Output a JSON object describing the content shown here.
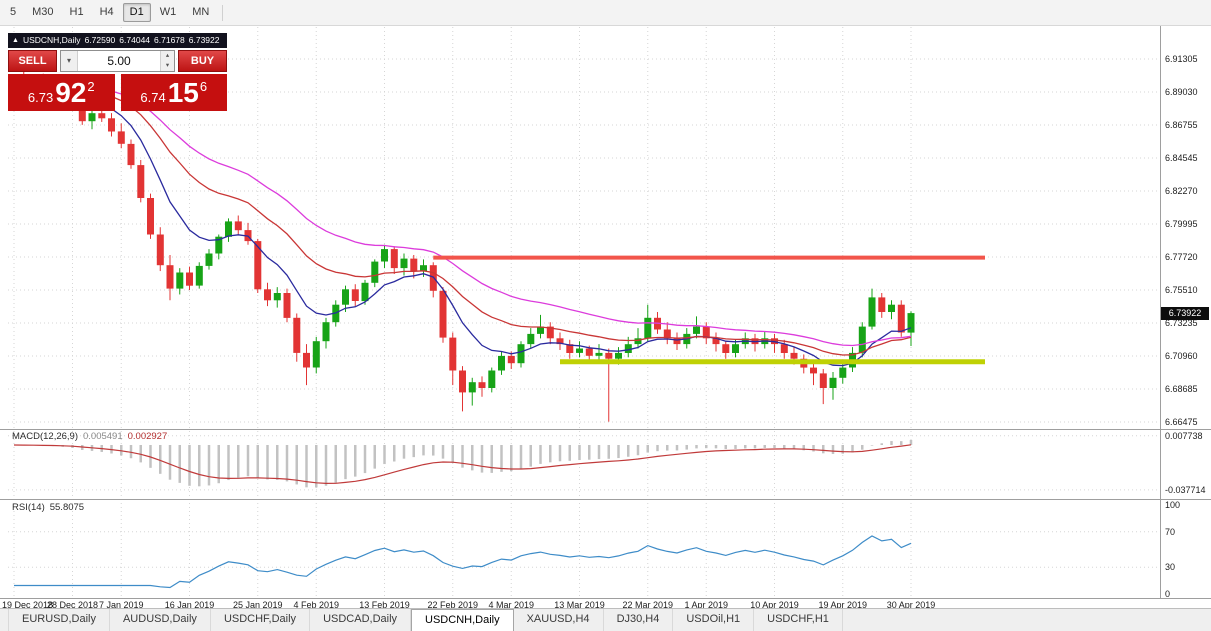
{
  "toolbar": {
    "timeframes": [
      {
        "label": "5",
        "active": false
      },
      {
        "label": "M30",
        "active": false
      },
      {
        "label": "H1",
        "active": false
      },
      {
        "label": "H4",
        "active": false
      },
      {
        "label": "D1",
        "active": true
      },
      {
        "label": "W1",
        "active": false
      },
      {
        "label": "MN",
        "active": false
      }
    ]
  },
  "trade_panel": {
    "header": {
      "collapse_icon": "▲",
      "title": "USDCNH,Daily",
      "open": "6.72590",
      "high": "6.74044",
      "low": "6.71678",
      "close": "6.73922"
    },
    "sell_label": "SELL",
    "buy_label": "BUY",
    "volume": "5.00",
    "sell_quote": {
      "base": "6.73",
      "pips": "92",
      "sup": "2"
    },
    "buy_quote": {
      "base": "6.74",
      "pips": "15",
      "sup": "6"
    }
  },
  "chart": {
    "symbol": "USDCNH",
    "period": "Daily",
    "current_price": "6.73922",
    "price_scale": [
      "6.91305",
      "6.89030",
      "6.86755",
      "6.84545",
      "6.82270",
      "6.79995",
      "6.77720",
      "6.75510",
      "6.73235",
      "6.70960",
      "6.68685",
      "6.66475"
    ],
    "date_ticks": [
      {
        "label": "19 Dec 2018",
        "index": 0
      },
      {
        "label": "28 Dec 2018",
        "index": 6
      },
      {
        "label": "7 Jan 2019",
        "index": 11
      },
      {
        "label": "16 Jan 2019",
        "index": 18
      },
      {
        "label": "25 Jan 2019",
        "index": 25
      },
      {
        "label": "4 Feb 2019",
        "index": 31
      },
      {
        "label": "13 Feb 2019",
        "index": 38
      },
      {
        "label": "22 Feb 2019",
        "index": 45
      },
      {
        "label": "4 Mar 2019",
        "index": 51
      },
      {
        "label": "13 Mar 2019",
        "index": 58
      },
      {
        "label": "22 Mar 2019",
        "index": 65
      },
      {
        "label": "1 Apr 2019",
        "index": 71
      },
      {
        "label": "10 Apr 2019",
        "index": 78
      },
      {
        "label": "19 Apr 2019",
        "index": 85
      },
      {
        "label": "30 Apr 2019",
        "index": 92
      }
    ],
    "objects": [
      {
        "name": "resistance-line",
        "price": 6.7772,
        "start_index": 43,
        "color": "#f2554b",
        "width": 4
      },
      {
        "name": "support-line",
        "price": 6.706,
        "start_index": 56,
        "color": "#bfd104",
        "width": 5
      }
    ],
    "candles": [
      [
        "19 Dec 2018",
        6.895,
        6.902,
        6.888,
        6.899
      ],
      [
        "20 Dec 2018",
        6.899,
        6.9055,
        6.892,
        6.894
      ],
      [
        "21 Dec 2018",
        6.894,
        6.9,
        6.887,
        6.8975
      ],
      [
        "24 Dec 2018",
        6.8975,
        6.903,
        6.89,
        6.892
      ],
      [
        "26 Dec 2018",
        6.892,
        6.898,
        6.885,
        6.8955
      ],
      [
        "27 Dec 2018",
        6.8955,
        6.9005,
        6.887,
        6.889
      ],
      [
        "28 Dec 2018",
        6.889,
        6.894,
        6.879,
        6.8815
      ],
      [
        "31 Dec 2018",
        6.8815,
        6.886,
        6.868,
        6.8705
      ],
      [
        "2 Jan 2019",
        6.8705,
        6.879,
        6.865,
        6.876
      ],
      [
        "3 Jan 2019",
        6.876,
        6.882,
        6.87,
        6.8725
      ],
      [
        "4 Jan 2019",
        6.8725,
        6.876,
        6.86,
        6.8635
      ],
      [
        "7 Jan 2019",
        6.8635,
        6.869,
        6.852,
        6.855
      ],
      [
        "8 Jan 2019",
        6.855,
        6.858,
        6.838,
        6.8405
      ],
      [
        "9 Jan 2019",
        6.8405,
        6.844,
        6.815,
        6.818
      ],
      [
        "10 Jan 2019",
        6.818,
        6.821,
        6.79,
        6.793
      ],
      [
        "11 Jan 2019",
        6.793,
        6.798,
        6.768,
        6.772
      ],
      [
        "14 Jan 2019",
        6.772,
        6.779,
        6.748,
        6.756
      ],
      [
        "15 Jan 2019",
        6.756,
        6.77,
        6.752,
        6.767
      ],
      [
        "16 Jan 2019",
        6.767,
        6.771,
        6.755,
        6.758
      ],
      [
        "17 Jan 2019",
        6.758,
        6.774,
        6.756,
        6.7715
      ],
      [
        "18 Jan 2019",
        6.7715,
        6.783,
        6.769,
        6.78
      ],
      [
        "21 Jan 2019",
        6.78,
        6.793,
        6.776,
        6.7915
      ],
      [
        "22 Jan 2019",
        6.7915,
        6.804,
        6.788,
        6.802
      ],
      [
        "23 Jan 2019",
        6.802,
        6.806,
        6.793,
        6.796
      ],
      [
        "24 Jan 2019",
        6.796,
        6.801,
        6.786,
        6.7885
      ],
      [
        "25 Jan 2019",
        6.7885,
        6.79,
        6.753,
        6.7555
      ],
      [
        "28 Jan 2019",
        6.7555,
        6.76,
        6.744,
        6.748
      ],
      [
        "29 Jan 2019",
        6.748,
        6.757,
        6.743,
        6.753
      ],
      [
        "30 Jan 2019",
        6.753,
        6.756,
        6.733,
        6.736
      ],
      [
        "31 Jan 2019",
        6.736,
        6.739,
        6.706,
        6.712
      ],
      [
        "1 Feb 2019",
        6.712,
        6.718,
        6.69,
        6.702
      ],
      [
        "4 Feb 2019",
        6.702,
        6.723,
        6.698,
        6.72
      ],
      [
        "5 Feb 2019",
        6.72,
        6.736,
        6.715,
        6.733
      ],
      [
        "6 Feb 2019",
        6.733,
        6.748,
        6.73,
        6.745
      ],
      [
        "7 Feb 2019",
        6.745,
        6.758,
        6.74,
        6.7555
      ],
      [
        "8 Feb 2019",
        6.7555,
        6.759,
        6.744,
        6.7475
      ],
      [
        "11 Feb 2019",
        6.7475,
        6.762,
        6.745,
        6.76
      ],
      [
        "12 Feb 2019",
        6.76,
        6.776,
        6.757,
        6.7745
      ],
      [
        "13 Feb 2019",
        6.7745,
        6.786,
        6.77,
        6.783
      ],
      [
        "14 Feb 2019",
        6.783,
        6.785,
        6.766,
        6.77
      ],
      [
        "15 Feb 2019",
        6.77,
        6.78,
        6.765,
        6.7765
      ],
      [
        "18 Feb 2019",
        6.7765,
        6.779,
        6.763,
        6.768
      ],
      [
        "19 Feb 2019",
        6.768,
        6.776,
        6.764,
        6.772
      ],
      [
        "20 Feb 2019",
        6.772,
        6.774,
        6.75,
        6.7545
      ],
      [
        "21 Feb 2019",
        6.7545,
        6.757,
        6.719,
        6.7225
      ],
      [
        "22 Feb 2019",
        6.7225,
        6.726,
        6.69,
        6.7
      ],
      [
        "25 Feb 2019",
        6.7,
        6.703,
        6.672,
        6.685
      ],
      [
        "26 Feb 2019",
        6.685,
        6.695,
        6.676,
        6.692
      ],
      [
        "27 Feb 2019",
        6.692,
        6.696,
        6.682,
        6.688
      ],
      [
        "28 Feb 2019",
        6.688,
        6.702,
        6.685,
        6.7
      ],
      [
        "1 Mar 2019",
        6.7,
        6.713,
        6.697,
        6.71
      ],
      [
        "4 Mar 2019",
        6.71,
        6.713,
        6.701,
        6.705
      ],
      [
        "5 Mar 2019",
        6.705,
        6.72,
        6.702,
        6.718
      ],
      [
        "6 Mar 2019",
        6.718,
        6.729,
        6.715,
        6.725
      ],
      [
        "7 Mar 2019",
        6.725,
        6.738,
        6.722,
        6.73
      ],
      [
        "8 Mar 2019",
        6.73,
        6.733,
        6.718,
        6.722
      ],
      [
        "11 Mar 2019",
        6.722,
        6.726,
        6.714,
        6.718
      ],
      [
        "12 Mar 2019",
        6.718,
        6.721,
        6.708,
        6.712
      ],
      [
        "13 Mar 2019",
        6.712,
        6.72,
        6.709,
        6.715
      ],
      [
        "14 Mar 2019",
        6.715,
        6.717,
        6.705,
        6.71
      ],
      [
        "15 Mar 2019",
        6.71,
        6.718,
        6.707,
        6.712
      ],
      [
        "18 Mar 2019",
        6.712,
        6.715,
        6.665,
        6.708
      ],
      [
        "19 Mar 2019",
        6.708,
        6.716,
        6.704,
        6.712
      ],
      [
        "20 Mar 2019",
        6.712,
        6.723,
        6.709,
        6.718
      ],
      [
        "21 Mar 2019",
        6.718,
        6.729,
        6.715,
        6.722
      ],
      [
        "22 Mar 2019",
        6.722,
        6.745,
        6.72,
        6.736
      ],
      [
        "25 Mar 2019",
        6.736,
        6.74,
        6.725,
        6.728
      ],
      [
        "26 Mar 2019",
        6.728,
        6.733,
        6.718,
        6.722
      ],
      [
        "27 Mar 2019",
        6.722,
        6.726,
        6.714,
        6.718
      ],
      [
        "28 Mar 2019",
        6.718,
        6.729,
        6.715,
        6.725
      ],
      [
        "29 Mar 2019",
        6.725,
        6.737,
        6.722,
        6.73
      ],
      [
        "1 Apr 2019",
        6.73,
        6.733,
        6.718,
        6.722
      ],
      [
        "2 Apr 2019",
        6.722,
        6.726,
        6.713,
        6.718
      ],
      [
        "3 Apr 2019",
        6.718,
        6.72,
        6.708,
        6.712
      ],
      [
        "4 Apr 2019",
        6.712,
        6.721,
        6.709,
        6.718
      ],
      [
        "5 Apr 2019",
        6.718,
        6.726,
        6.715,
        6.722
      ],
      [
        "8 Apr 2019",
        6.722,
        6.725,
        6.713,
        6.718
      ],
      [
        "9 Apr 2019",
        6.718,
        6.727,
        6.715,
        6.722
      ],
      [
        "10 Apr 2019",
        6.722,
        6.725,
        6.712,
        6.718
      ],
      [
        "11 Apr 2019",
        6.718,
        6.721,
        6.708,
        6.712
      ],
      [
        "12 Apr 2019",
        6.712,
        6.716,
        6.704,
        6.708
      ],
      [
        "15 Apr 2019",
        6.708,
        6.711,
        6.698,
        6.702
      ],
      [
        "16 Apr 2019",
        6.702,
        6.706,
        6.69,
        6.698
      ],
      [
        "17 Apr 2019",
        6.698,
        6.701,
        6.677,
        6.688
      ],
      [
        "18 Apr 2019",
        6.688,
        6.699,
        6.68,
        6.695
      ],
      [
        "19 Apr 2019",
        6.695,
        6.706,
        6.691,
        6.702
      ],
      [
        "22 Apr 2019",
        6.702,
        6.716,
        6.699,
        6.712
      ],
      [
        "23 Apr 2019",
        6.712,
        6.733,
        6.709,
        6.73
      ],
      [
        "24 Apr 2019",
        6.73,
        6.756,
        6.728,
        6.75
      ],
      [
        "25 Apr 2019",
        6.75,
        6.753,
        6.736,
        6.74
      ],
      [
        "26 Apr 2019",
        6.74,
        6.748,
        6.735,
        6.745
      ],
      [
        "29 Apr 2019",
        6.745,
        6.748,
        6.723,
        6.726
      ],
      [
        "30 Apr 2019",
        6.7259,
        6.74044,
        6.71678,
        6.73922
      ]
    ]
  },
  "macd_panel": {
    "label": "MACD(12,26,9)",
    "value_main": "0.005491",
    "value_signal": "0.002927",
    "scale": [
      "0.007738",
      "-0.037714"
    ]
  },
  "rsi_panel": {
    "label": "RSI(14)",
    "value": "55.8075",
    "scale": [
      "100",
      "70",
      "30",
      "0"
    ],
    "levels": [
      70,
      30
    ]
  },
  "tabs": [
    {
      "label": "EURUSD,Daily",
      "active": false
    },
    {
      "label": "AUDUSD,Daily",
      "active": false
    },
    {
      "label": "USDCHF,Daily",
      "active": false
    },
    {
      "label": "USDCAD,Daily",
      "active": false
    },
    {
      "label": "USDCNH,Daily",
      "active": true
    },
    {
      "label": "XAUUSD,H4",
      "active": false
    },
    {
      "label": "DJ30,H4",
      "active": false
    },
    {
      "label": "USDOil,H1",
      "active": false
    },
    {
      "label": "USDCHF,H1",
      "active": false
    }
  ],
  "colors": {
    "bull": "#17a317",
    "bear": "#e23434",
    "ma_fast": "#2a2a9e",
    "ma_mid": "#c93636",
    "ma_slow": "#dc3cdc",
    "macd_hist": "#c2c2c2",
    "macd_signal": "#c03a3a",
    "rsi_line": "#3e8cc8",
    "quote_red": "#c50f0f",
    "grid": "#d6d6d6"
  }
}
